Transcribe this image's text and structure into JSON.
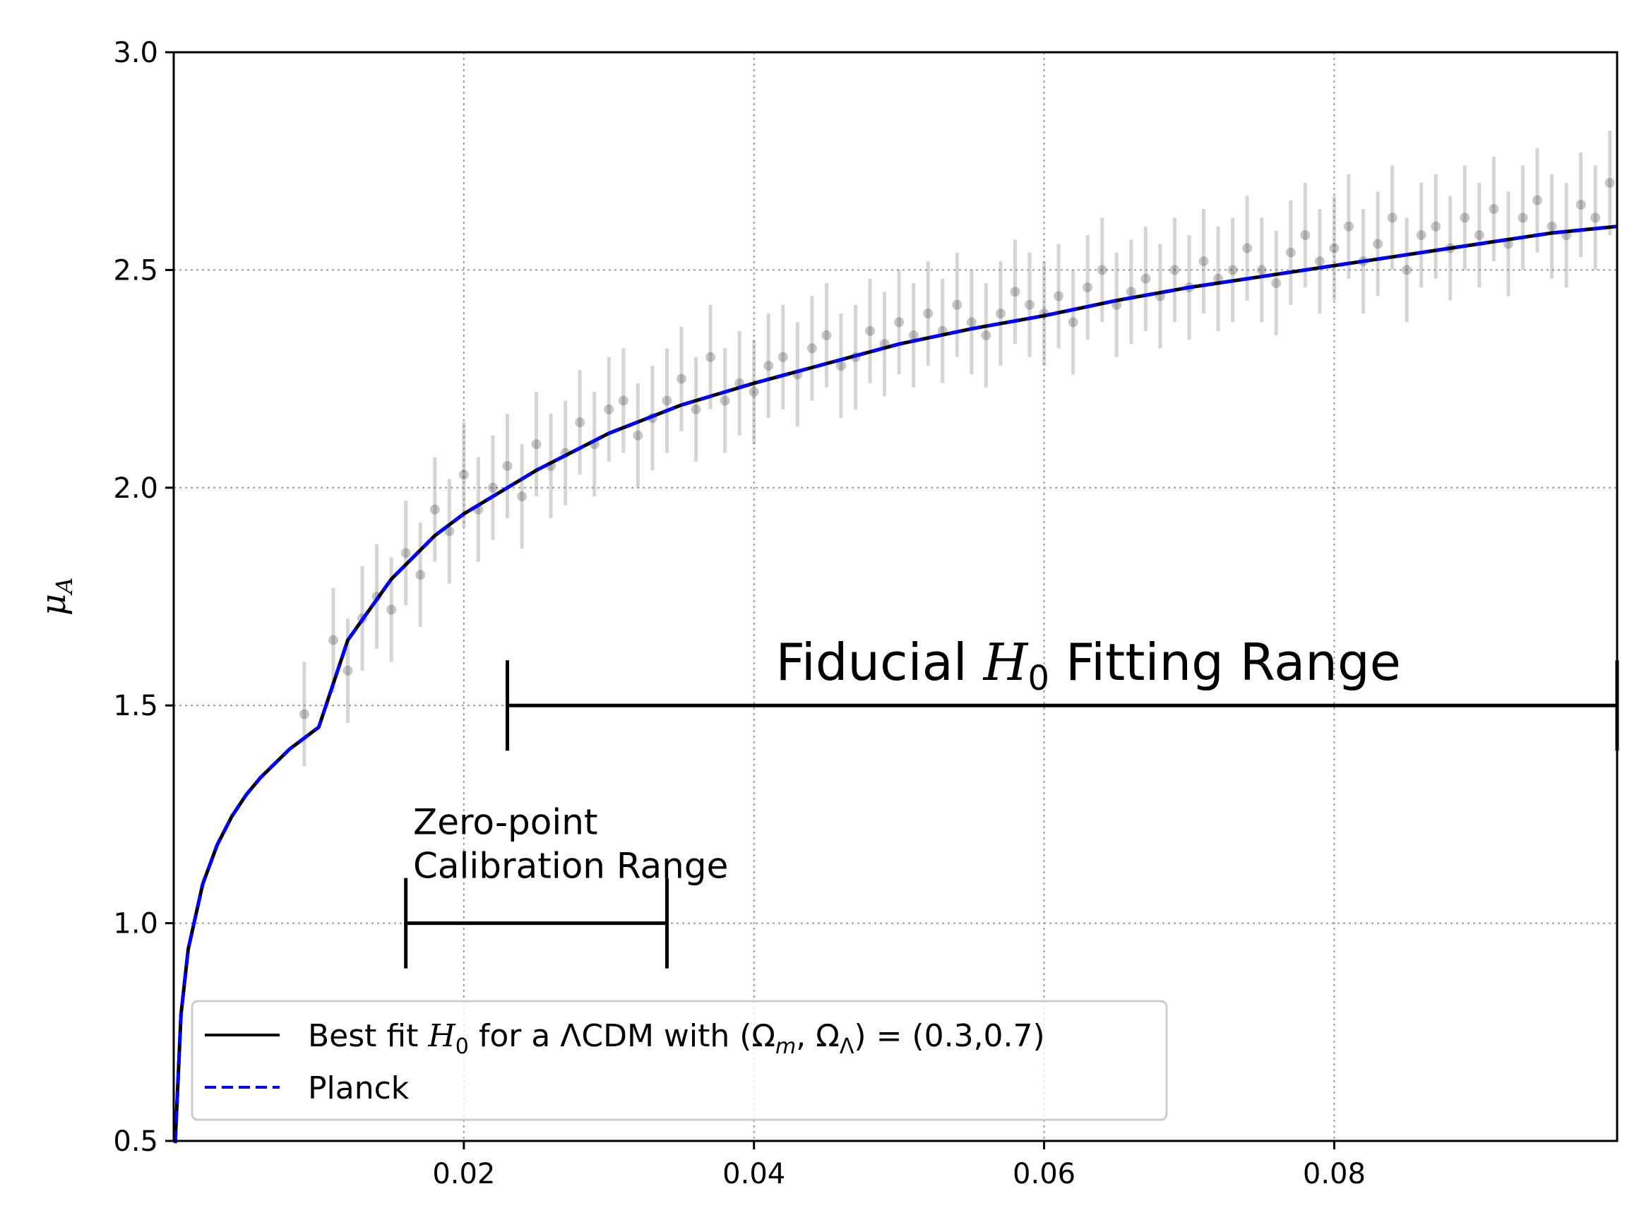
{
  "chart_data": {
    "type": "scatter",
    "xlabel": "",
    "ylabel": "μ_A",
    "xlim": [
      0.0,
      0.0995
    ],
    "ylim": [
      0.5,
      3.0
    ],
    "x_ticks": [
      0.02,
      0.04,
      0.06,
      0.08
    ],
    "x_tick_labels": [
      "0.02",
      "0.04",
      "0.06",
      "0.08"
    ],
    "y_ticks": [
      0.5,
      1.0,
      1.5,
      2.0,
      2.5,
      3.0
    ],
    "y_tick_labels": [
      "0.5",
      "1.0",
      "1.5",
      "2.0",
      "2.5",
      "3.0"
    ],
    "grid": true,
    "legend_position": "lower-left",
    "series": [
      {
        "name": "Best fit H0 for a ΛCDM with (Ωm, ΩΛ) = (0.3,0.7)",
        "style": "solid",
        "color": "#000000",
        "x": [
          0.0001,
          0.0005,
          0.001,
          0.002,
          0.003,
          0.004,
          0.005,
          0.006,
          0.008,
          0.01,
          0.012,
          0.015,
          0.018,
          0.02,
          0.025,
          0.03,
          0.035,
          0.04,
          0.045,
          0.05,
          0.055,
          0.06,
          0.065,
          0.07,
          0.075,
          0.08,
          0.085,
          0.09,
          0.095,
          0.0995
        ],
        "y": [
          0.495,
          0.79,
          0.94,
          1.09,
          1.18,
          1.245,
          1.295,
          1.335,
          1.4,
          1.45,
          1.65,
          1.79,
          1.89,
          1.94,
          2.04,
          2.125,
          2.19,
          2.24,
          2.285,
          2.33,
          2.365,
          2.395,
          2.43,
          2.46,
          2.485,
          2.51,
          2.535,
          2.56,
          2.585,
          2.6
        ]
      },
      {
        "name": "Planck",
        "style": "dashed",
        "color": "#0000ff",
        "x": [
          0.0001,
          0.0005,
          0.001,
          0.002,
          0.003,
          0.004,
          0.005,
          0.006,
          0.008,
          0.01,
          0.012,
          0.015,
          0.018,
          0.02,
          0.025,
          0.03,
          0.035,
          0.04,
          0.045,
          0.05,
          0.055,
          0.06,
          0.065,
          0.07,
          0.075,
          0.08,
          0.085,
          0.09,
          0.095,
          0.0995
        ],
        "y": [
          0.495,
          0.79,
          0.94,
          1.09,
          1.18,
          1.245,
          1.295,
          1.335,
          1.4,
          1.45,
          1.65,
          1.79,
          1.89,
          1.94,
          2.04,
          2.125,
          2.19,
          2.24,
          2.285,
          2.33,
          2.365,
          2.395,
          2.43,
          2.46,
          2.485,
          2.51,
          2.535,
          2.56,
          2.585,
          2.6
        ]
      }
    ],
    "scatter_points": {
      "color": "#000000",
      "x": [
        0.009,
        0.011,
        0.012,
        0.013,
        0.014,
        0.015,
        0.016,
        0.017,
        0.018,
        0.019,
        0.02,
        0.021,
        0.022,
        0.023,
        0.024,
        0.025,
        0.026,
        0.027,
        0.028,
        0.029,
        0.03,
        0.031,
        0.032,
        0.033,
        0.034,
        0.035,
        0.036,
        0.037,
        0.038,
        0.039,
        0.04,
        0.041,
        0.042,
        0.043,
        0.044,
        0.045,
        0.046,
        0.047,
        0.048,
        0.049,
        0.05,
        0.051,
        0.052,
        0.053,
        0.054,
        0.055,
        0.056,
        0.057,
        0.058,
        0.059,
        0.06,
        0.061,
        0.062,
        0.063,
        0.064,
        0.065,
        0.066,
        0.067,
        0.068,
        0.069,
        0.07,
        0.071,
        0.072,
        0.073,
        0.074,
        0.075,
        0.076,
        0.077,
        0.078,
        0.079,
        0.08,
        0.081,
        0.082,
        0.083,
        0.084,
        0.085,
        0.086,
        0.087,
        0.088,
        0.089,
        0.09,
        0.091,
        0.092,
        0.093,
        0.094,
        0.095,
        0.096,
        0.097,
        0.098,
        0.099
      ],
      "y": [
        1.48,
        1.65,
        1.58,
        1.7,
        1.75,
        1.72,
        1.85,
        1.8,
        1.95,
        1.9,
        2.03,
        1.95,
        2.0,
        2.05,
        1.98,
        2.1,
        2.05,
        2.08,
        2.15,
        2.1,
        2.18,
        2.2,
        2.12,
        2.16,
        2.2,
        2.25,
        2.18,
        2.3,
        2.2,
        2.24,
        2.22,
        2.28,
        2.3,
        2.26,
        2.32,
        2.35,
        2.28,
        2.3,
        2.36,
        2.33,
        2.38,
        2.35,
        2.4,
        2.36,
        2.42,
        2.38,
        2.35,
        2.4,
        2.45,
        2.42,
        2.4,
        2.44,
        2.38,
        2.46,
        2.5,
        2.42,
        2.45,
        2.48,
        2.44,
        2.5,
        2.46,
        2.52,
        2.48,
        2.5,
        2.55,
        2.5,
        2.47,
        2.54,
        2.58,
        2.52,
        2.55,
        2.6,
        2.52,
        2.56,
        2.62,
        2.5,
        2.58,
        2.6,
        2.55,
        2.62,
        2.58,
        2.64,
        2.56,
        2.62,
        2.66,
        2.6,
        2.58,
        2.65,
        2.62,
        2.7
      ],
      "yerr": 0.12
    },
    "annotations": [
      {
        "text": "Fiducial H0 Fitting Range",
        "x_range": [
          0.023,
          0.0995
        ],
        "y": 1.5
      },
      {
        "text_line1": "Zero-point",
        "text_line2": "Calibration Range",
        "x_range": [
          0.016,
          0.034
        ],
        "y": 1.0
      }
    ],
    "legend": [
      {
        "label_prefix": "Best fit ",
        "label_h": "H",
        "label_h_sub": "0",
        "label_mid": " for a ΛCDM with (Ω",
        "label_m_sub": "m",
        "label_mid2": ", Ω",
        "label_l_sub": "Λ",
        "label_suffix": ") = (0.3,0.7)"
      },
      {
        "label": "Planck"
      }
    ]
  }
}
